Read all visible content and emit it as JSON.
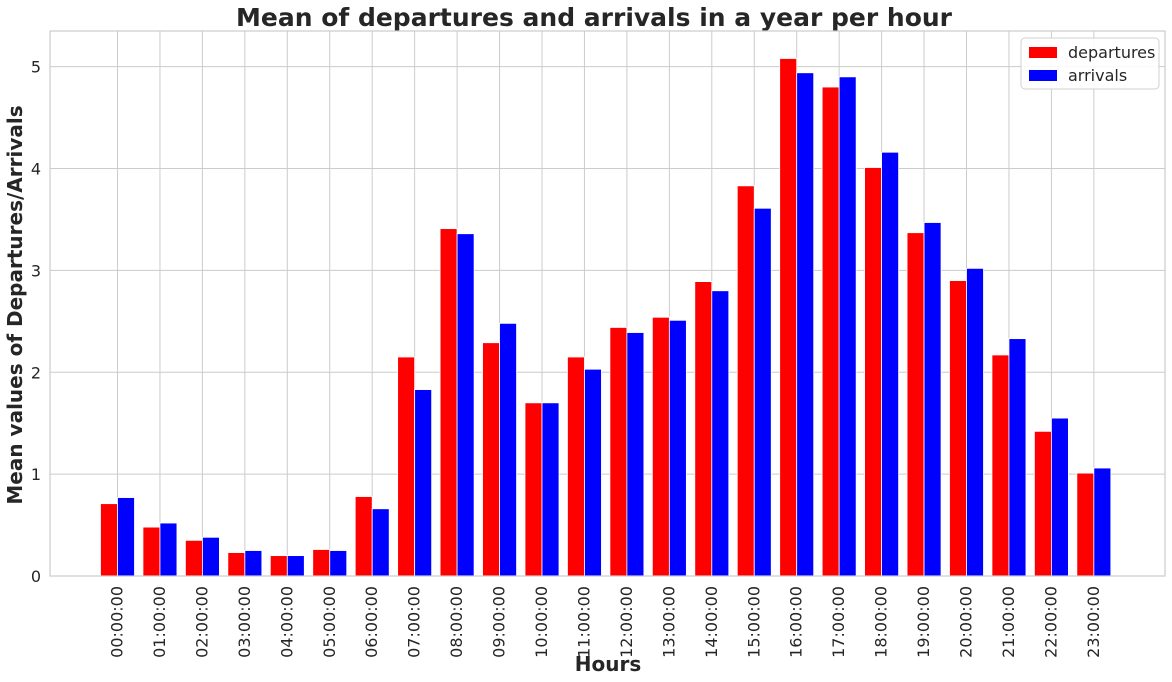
{
  "chart_data": {
    "type": "bar",
    "title": "Mean of departures and arrivals in a year per hour",
    "xlabel": "Hours",
    "ylabel": "Mean values of Departures/Arrivals",
    "categories": [
      "00:00:00",
      "01:00:00",
      "02:00:00",
      "03:00:00",
      "04:00:00",
      "05:00:00",
      "06:00:00",
      "07:00:00",
      "08:00:00",
      "09:00:00",
      "10:00:00",
      "11:00:00",
      "12:00:00",
      "13:00:00",
      "14:00:00",
      "15:00:00",
      "16:00:00",
      "17:00:00",
      "18:00:00",
      "19:00:00",
      "20:00:00",
      "21:00:00",
      "22:00:00",
      "23:00:00"
    ],
    "series": [
      {
        "name": "departures",
        "color": "#ff0000",
        "values": [
          0.71,
          0.48,
          0.35,
          0.23,
          0.2,
          0.26,
          0.78,
          2.15,
          3.41,
          2.29,
          1.7,
          2.15,
          2.44,
          2.54,
          2.89,
          3.83,
          5.08,
          4.8,
          4.01,
          3.37,
          2.9,
          2.17,
          1.42,
          1.01
        ]
      },
      {
        "name": "arrivals",
        "color": "#0000ff",
        "values": [
          0.77,
          0.52,
          0.38,
          0.25,
          0.2,
          0.25,
          0.66,
          1.83,
          3.36,
          2.48,
          1.7,
          2.03,
          2.39,
          2.51,
          2.8,
          3.61,
          4.94,
          4.9,
          4.16,
          3.47,
          3.02,
          2.33,
          1.55,
          1.06
        ]
      }
    ],
    "ylim": [
      0,
      5.35
    ],
    "yticks": [
      0,
      1,
      2,
      3,
      4,
      5
    ],
    "grid": true,
    "legend_position": "top-right"
  }
}
